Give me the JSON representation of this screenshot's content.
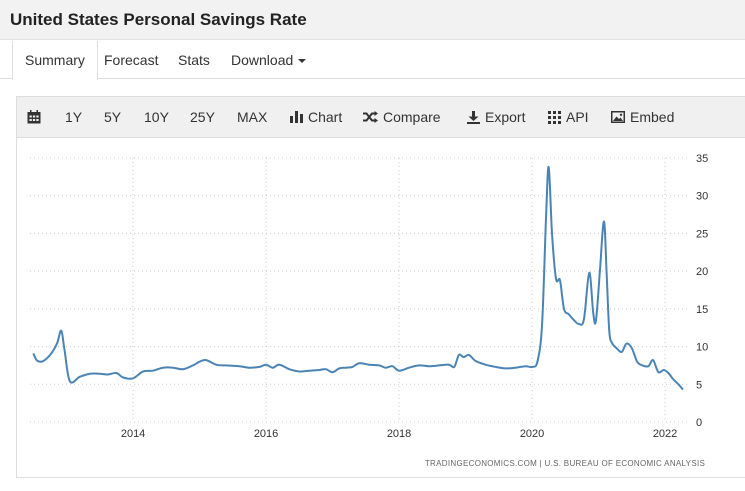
{
  "page_title": "United States Personal Savings Rate",
  "tabs": [
    {
      "label": "Summary",
      "active": true
    },
    {
      "label": "Forecast"
    },
    {
      "label": "Stats"
    },
    {
      "label": "Download"
    }
  ],
  "toolbar": {
    "ranges": [
      "1Y",
      "5Y",
      "10Y",
      "25Y",
      "MAX"
    ],
    "chart": "Chart",
    "compare": "Compare",
    "export": "Export",
    "api": "API",
    "embed": "Embed"
  },
  "source_text": "TRADINGECONOMICS.COM | U.S. BUREAU OF ECONOMIC ANALYSIS",
  "colors": {
    "line": "#4a84b5",
    "grid": "#cccccc"
  },
  "chart_data": {
    "type": "line",
    "title": "United States Personal Savings Rate",
    "xlabel": "",
    "ylabel": "",
    "ylim": [
      0,
      35
    ],
    "xlim": [
      2012.45,
      2022.33
    ],
    "yticks": [
      0,
      5,
      10,
      15,
      20,
      25,
      30,
      35
    ],
    "xticks": [
      2014,
      2016,
      2018,
      2020,
      2022
    ],
    "y_axis_side": "right",
    "grid": "vertical dotted",
    "series": [
      {
        "x": [
          2012.5,
          2012.55,
          2012.62,
          2012.7,
          2012.78,
          2012.86,
          2012.92,
          2012.97,
          2013.05,
          2013.2,
          2013.35,
          2013.5,
          2013.62,
          2013.75,
          2013.85,
          2014.0,
          2014.15,
          2014.3,
          2014.45,
          2014.6,
          2014.75,
          2014.9,
          2015.0,
          2015.1,
          2015.25,
          2015.4,
          2015.6,
          2015.75,
          2015.9,
          2016.0,
          2016.1,
          2016.2,
          2016.35,
          2016.5,
          2016.65,
          2016.8,
          2016.9,
          2017.0,
          2017.1,
          2017.2,
          2017.3,
          2017.4,
          2017.55,
          2017.7,
          2017.8,
          2017.9,
          2018.0,
          2018.15,
          2018.3,
          2018.45,
          2018.6,
          2018.75,
          2018.83,
          2018.9,
          2018.97,
          2019.05,
          2019.15,
          2019.3,
          2019.45,
          2019.6,
          2019.75,
          2019.9,
          2020.0,
          2020.08,
          2020.15,
          2020.21,
          2020.25,
          2020.3,
          2020.36,
          2020.42,
          2020.48,
          2020.55,
          2020.62,
          2020.7,
          2020.78,
          2020.86,
          2020.92,
          2020.96,
          2021.02,
          2021.08,
          2021.12,
          2021.16,
          2021.2,
          2021.27,
          2021.35,
          2021.42,
          2021.5,
          2021.58,
          2021.66,
          2021.75,
          2021.82,
          2021.9,
          2021.98,
          2022.05,
          2022.12,
          2022.2,
          2022.27
        ],
        "values": [
          9.1,
          8.2,
          8.0,
          8.4,
          9.2,
          10.5,
          12.1,
          9.5,
          5.4,
          6.0,
          6.4,
          6.4,
          6.3,
          6.5,
          5.9,
          5.8,
          6.7,
          6.8,
          7.2,
          7.2,
          7.0,
          7.5,
          8.0,
          8.2,
          7.6,
          7.5,
          7.4,
          7.2,
          7.3,
          7.6,
          7.2,
          7.6,
          7.0,
          6.7,
          6.8,
          6.9,
          7.0,
          6.6,
          7.1,
          7.2,
          7.3,
          7.8,
          7.6,
          7.5,
          7.2,
          7.4,
          6.8,
          7.2,
          7.5,
          7.4,
          7.5,
          7.6,
          7.3,
          8.9,
          8.6,
          8.9,
          8.1,
          7.6,
          7.3,
          7.1,
          7.2,
          7.4,
          7.3,
          8.0,
          12.8,
          27.0,
          33.8,
          25.0,
          19.0,
          18.8,
          15.0,
          14.3,
          13.6,
          13.0,
          13.6,
          19.8,
          14.5,
          13.4,
          20.0,
          26.6,
          20.1,
          12.2,
          10.5,
          9.8,
          9.3,
          10.4,
          9.8,
          8.0,
          7.5,
          7.4,
          8.2,
          6.6,
          6.9,
          6.5,
          5.7,
          5.0,
          4.3
        ]
      }
    ]
  }
}
